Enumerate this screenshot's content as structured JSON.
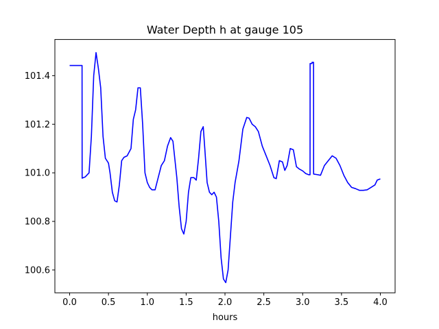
{
  "chart_data": {
    "type": "line",
    "title": "Water Depth h at gauge 105",
    "xlabel": "hours",
    "ylabel": "",
    "xlim": [
      -0.19,
      4.19
    ],
    "ylim": [
      100.506,
      101.549
    ],
    "x_ticks": [
      0.0,
      0.5,
      1.0,
      1.5,
      2.0,
      2.5,
      3.0,
      3.5,
      4.0
    ],
    "x_tick_labels": [
      "0.0",
      "0.5",
      "1.0",
      "1.5",
      "2.0",
      "2.5",
      "3.0",
      "3.5",
      "4.0"
    ],
    "y_ticks": [
      100.6,
      100.8,
      101.0,
      101.2,
      101.4
    ],
    "y_tick_labels": [
      "100.6",
      "100.8",
      "101.0",
      "101.2",
      "101.4"
    ],
    "grid": false,
    "legend": "none",
    "series": [
      {
        "color": "#0000ff",
        "x": [
          0.0,
          0.16,
          0.161,
          0.2,
          0.25,
          0.28,
          0.31,
          0.34,
          0.37,
          0.4,
          0.43,
          0.46,
          0.5,
          0.52,
          0.55,
          0.58,
          0.61,
          0.64,
          0.67,
          0.7,
          0.74,
          0.79,
          0.82,
          0.85,
          0.88,
          0.91,
          0.94,
          0.97,
          1.0,
          1.03,
          1.06,
          1.1,
          1.14,
          1.18,
          1.22,
          1.26,
          1.3,
          1.33,
          1.36,
          1.38,
          1.41,
          1.44,
          1.47,
          1.5,
          1.53,
          1.56,
          1.6,
          1.63,
          1.66,
          1.69,
          1.72,
          1.74,
          1.77,
          1.8,
          1.83,
          1.86,
          1.89,
          1.92,
          1.95,
          1.98,
          2.01,
          2.04,
          2.07,
          2.1,
          2.13,
          2.18,
          2.23,
          2.28,
          2.31,
          2.35,
          2.39,
          2.43,
          2.48,
          2.53,
          2.58,
          2.63,
          2.66,
          2.7,
          2.74,
          2.77,
          2.8,
          2.84,
          2.88,
          2.92,
          2.96,
          3.0,
          3.04,
          3.08,
          3.095,
          3.096,
          3.12,
          3.121,
          3.14,
          3.141,
          3.18,
          3.23,
          3.28,
          3.33,
          3.38,
          3.43,
          3.48,
          3.53,
          3.58,
          3.63,
          3.68,
          3.73,
          3.78,
          3.83,
          3.88,
          3.93,
          3.96,
          4.0
        ],
        "y": [
          101.442,
          101.442,
          100.978,
          100.983,
          101.0,
          101.15,
          101.4,
          101.495,
          101.43,
          101.35,
          101.15,
          101.06,
          101.04,
          101.0,
          100.92,
          100.885,
          100.88,
          100.95,
          101.05,
          101.064,
          101.07,
          101.1,
          101.22,
          101.26,
          101.35,
          101.35,
          101.2,
          101.0,
          100.96,
          100.94,
          100.93,
          100.93,
          100.98,
          101.03,
          101.05,
          101.11,
          101.145,
          101.13,
          101.04,
          100.98,
          100.86,
          100.77,
          100.748,
          100.8,
          100.92,
          100.98,
          100.98,
          100.97,
          101.06,
          101.17,
          101.19,
          101.1,
          100.96,
          100.92,
          100.91,
          100.92,
          100.9,
          100.8,
          100.65,
          100.563,
          100.548,
          100.6,
          100.74,
          100.88,
          100.96,
          101.05,
          101.18,
          101.228,
          101.225,
          101.2,
          101.19,
          101.17,
          101.11,
          101.07,
          101.03,
          100.98,
          100.976,
          101.05,
          101.045,
          101.01,
          101.03,
          101.1,
          101.095,
          101.025,
          101.015,
          101.008,
          100.997,
          100.992,
          100.992,
          101.45,
          101.45,
          101.455,
          101.455,
          100.995,
          100.993,
          100.99,
          101.03,
          101.05,
          101.07,
          101.06,
          101.03,
          100.99,
          100.96,
          100.94,
          100.935,
          100.928,
          100.928,
          100.93,
          100.94,
          100.95,
          100.97,
          100.975
        ]
      }
    ]
  }
}
